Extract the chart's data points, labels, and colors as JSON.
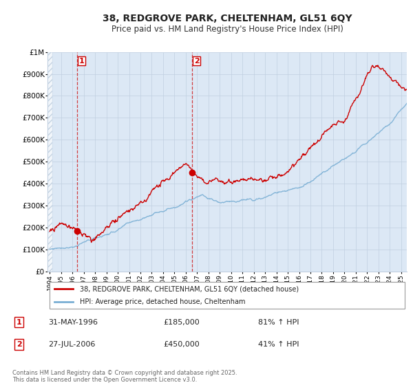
{
  "title": "38, REDGROVE PARK, CHELTENHAM, GL51 6QY",
  "subtitle": "Price paid vs. HM Land Registry's House Price Index (HPI)",
  "background_color": "#ffffff",
  "plot_bg_color": "#dce8f5",
  "hatch_color": "#b0c4d8",
  "grid_color": "#c0cfe0",
  "red_line_color": "#cc0000",
  "blue_line_color": "#7aafd4",
  "marker1_x": 1996.42,
  "marker1_y": 185000,
  "marker2_x": 2006.58,
  "marker2_y": 450000,
  "legend_red_label": "38, REDGROVE PARK, CHELTENHAM, GL51 6QY (detached house)",
  "legend_blue_label": "HPI: Average price, detached house, Cheltenham",
  "note1_num": "1",
  "note1_date": "31-MAY-1996",
  "note1_price": "£185,000",
  "note1_hpi": "81% ↑ HPI",
  "note2_num": "2",
  "note2_date": "27-JUL-2006",
  "note2_price": "£450,000",
  "note2_hpi": "41% ↑ HPI",
  "footer": "Contains HM Land Registry data © Crown copyright and database right 2025.\nThis data is licensed under the Open Government Licence v3.0.",
  "ylim": [
    0,
    1000000
  ],
  "xlim": [
    1993.8,
    2025.5
  ]
}
